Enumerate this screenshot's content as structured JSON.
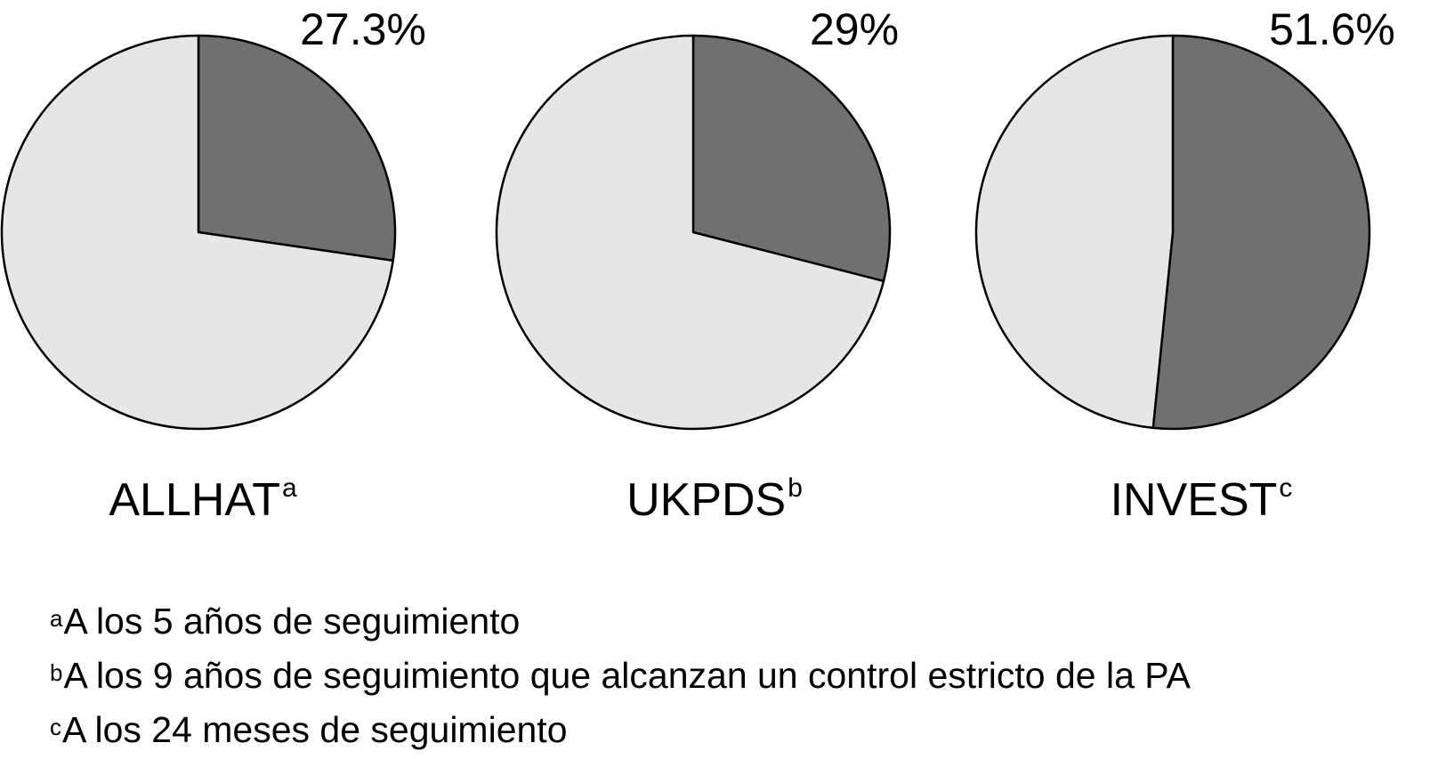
{
  "chart_data": [
    {
      "type": "pie",
      "name": "ALLHAT",
      "marker": "a",
      "label": "27.3%",
      "slices": [
        {
          "value": 27.3
        },
        {
          "value": 72.7
        }
      ],
      "colors": [
        "#707070",
        "#e6e6e6"
      ]
    },
    {
      "type": "pie",
      "name": "UKPDS",
      "marker": "b",
      "label": "29%",
      "slices": [
        {
          "value": 29
        },
        {
          "value": 71
        }
      ],
      "colors": [
        "#707070",
        "#e6e6e6"
      ]
    },
    {
      "type": "pie",
      "name": "INVEST",
      "marker": "c",
      "label": "51.6%",
      "slices": [
        {
          "value": 51.6
        },
        {
          "value": 48.4
        }
      ],
      "colors": [
        "#707070",
        "#e6e6e6"
      ]
    }
  ],
  "footnotes": [
    {
      "marker": "a",
      "text": "A los 5 años de seguimiento"
    },
    {
      "marker": "b",
      "text": "A los 9 años de seguimiento que alcanzan un control estricto de la PA"
    },
    {
      "marker": "c",
      "text": "A los 24 meses de seguimiento"
    }
  ]
}
